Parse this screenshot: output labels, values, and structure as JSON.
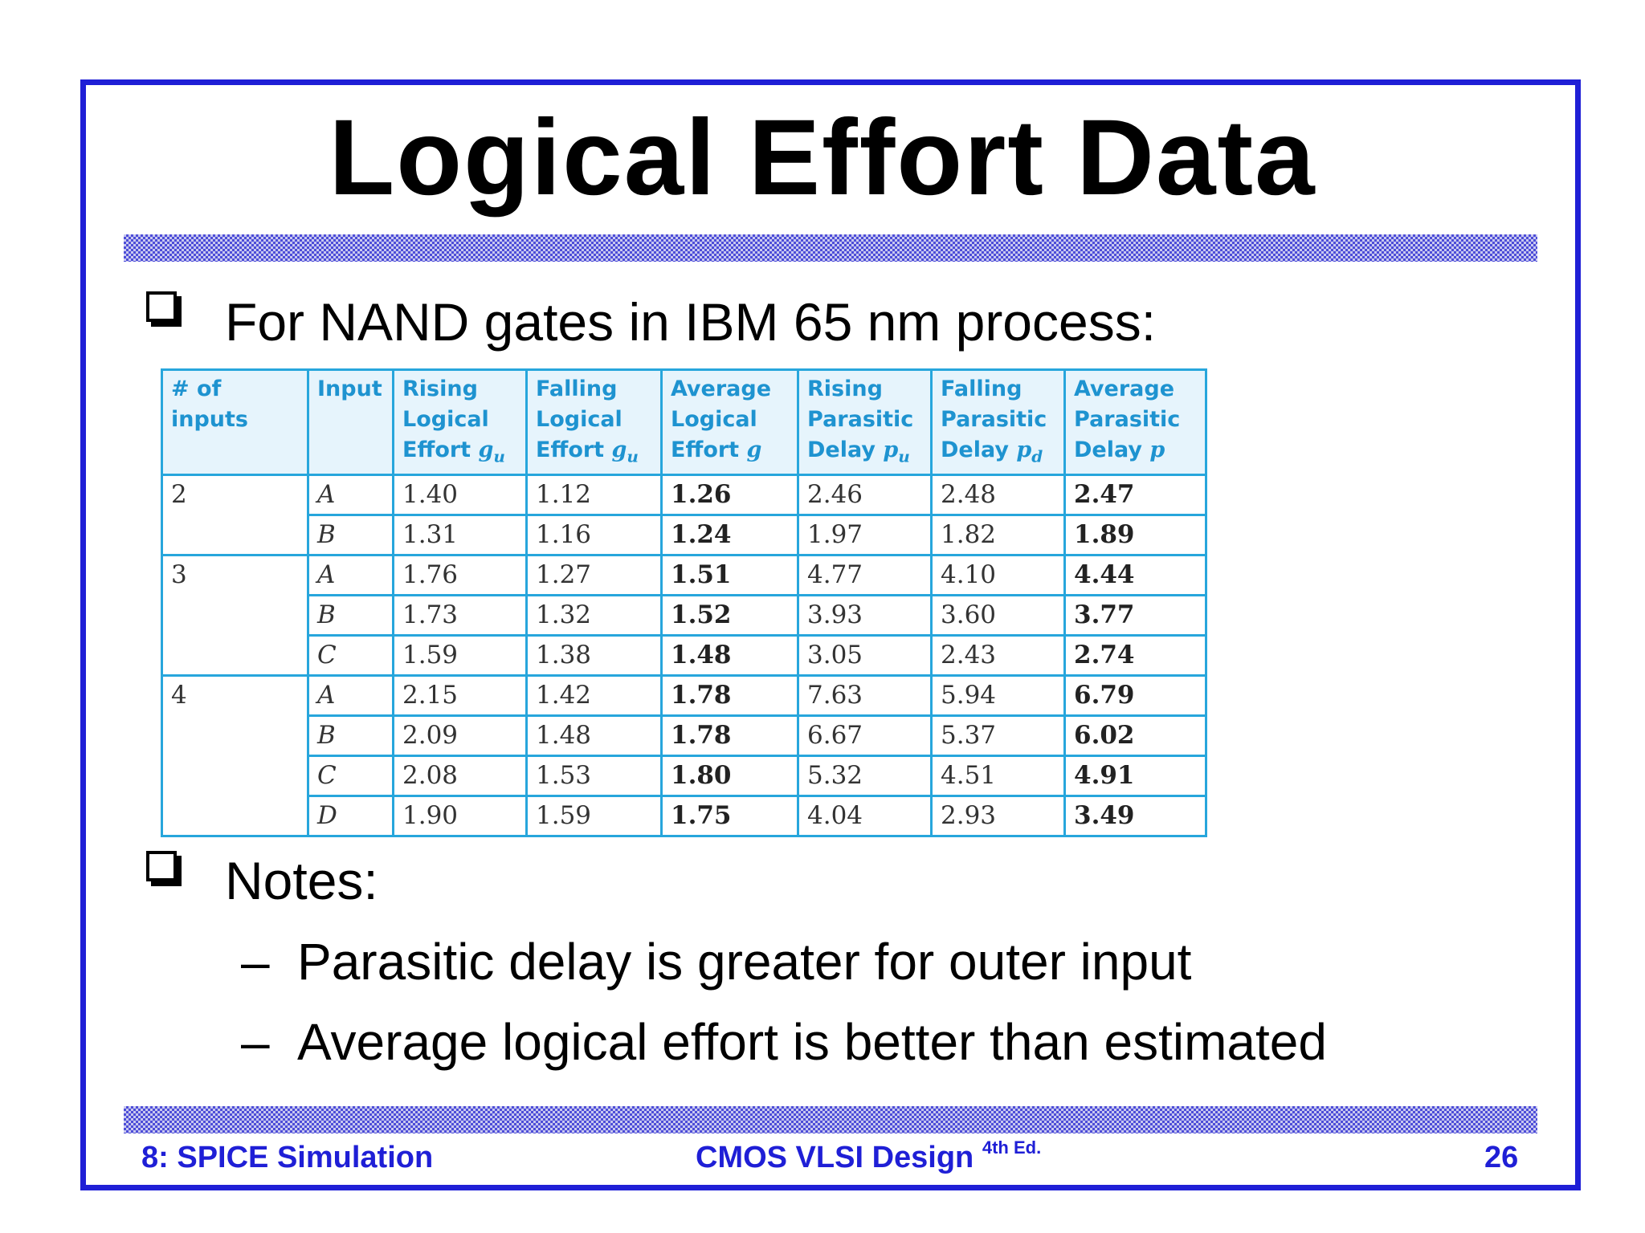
{
  "slide": {
    "title": "Logical Effort Data",
    "bullet1": "For NAND gates in IBM 65 nm process:",
    "bullet2": "Notes:",
    "notes": [
      "Parasitic delay is greater for outer input",
      "Average logical effort is better than estimated"
    ],
    "dash": "–"
  },
  "table": {
    "headers": [
      {
        "line1": "# of inputs",
        "line2": "",
        "line3": "",
        "sym": "",
        "sub": ""
      },
      {
        "line1": "Input",
        "line2": "",
        "line3": "",
        "sym": "",
        "sub": ""
      },
      {
        "line1": "Rising",
        "line2": "Logical",
        "line3": "Effort",
        "sym": "g",
        "sub": "u"
      },
      {
        "line1": "Falling",
        "line2": "Logical",
        "line3": "Effort",
        "sym": "g",
        "sub": "u"
      },
      {
        "line1": "Average",
        "line2": "Logical",
        "line3": "Effort",
        "sym": "g",
        "sub": ""
      },
      {
        "line1": "Rising",
        "line2": "Parasitic",
        "line3": "Delay",
        "sym": "p",
        "sub": "u"
      },
      {
        "line1": "Falling",
        "line2": "Parasitic",
        "line3": "Delay",
        "sym": "p",
        "sub": "d"
      },
      {
        "line1": "Average",
        "line2": "Parasitic",
        "line3": "Delay",
        "sym": "p",
        "sub": ""
      }
    ],
    "groups": [
      {
        "inputs": "2",
        "rows": [
          [
            "A",
            "1.40",
            "1.12",
            "1.26",
            "2.46",
            "2.48",
            "2.47"
          ],
          [
            "B",
            "1.31",
            "1.16",
            "1.24",
            "1.97",
            "1.82",
            "1.89"
          ]
        ]
      },
      {
        "inputs": "3",
        "rows": [
          [
            "A",
            "1.76",
            "1.27",
            "1.51",
            "4.77",
            "4.10",
            "4.44"
          ],
          [
            "B",
            "1.73",
            "1.32",
            "1.52",
            "3.93",
            "3.60",
            "3.77"
          ],
          [
            "C",
            "1.59",
            "1.38",
            "1.48",
            "3.05",
            "2.43",
            "2.74"
          ]
        ]
      },
      {
        "inputs": "4",
        "rows": [
          [
            "A",
            "2.15",
            "1.42",
            "1.78",
            "7.63",
            "5.94",
            "6.79"
          ],
          [
            "B",
            "2.09",
            "1.48",
            "1.78",
            "6.67",
            "5.37",
            "6.02"
          ],
          [
            "C",
            "2.08",
            "1.53",
            "1.80",
            "5.32",
            "4.51",
            "4.91"
          ],
          [
            "D",
            "1.90",
            "1.59",
            "1.75",
            "4.04",
            "2.93",
            "3.49"
          ]
        ]
      }
    ]
  },
  "footer": {
    "left": "8: SPICE Simulation",
    "center": "CMOS VLSI Design",
    "center_sup": "4th Ed.",
    "page": "26"
  },
  "colors": {
    "frame": "#1f1fd6",
    "table_border": "#27a6dc",
    "header_text": "#1e93d0",
    "header_bg": "#e6f4fc"
  }
}
